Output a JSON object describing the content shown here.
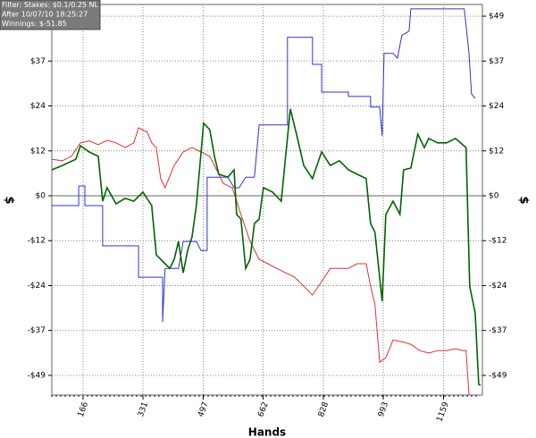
{
  "chart_data": {
    "type": "line",
    "info": [
      "Filter: Stakes: $0.1/0.25 NL",
      "After 10/07/10 18:25:27",
      "Winnings: $-51.85"
    ],
    "xlabel": "Hands",
    "ylabel": "$",
    "xlim": [
      80,
      1266
    ],
    "xticks": [
      166,
      331,
      497,
      662,
      828,
      993,
      1159
    ],
    "ylim": [
      -54.6,
      52.4
    ],
    "yticks": [
      {
        "value": 49.2,
        "label": "$49"
      },
      {
        "value": 36.9,
        "label": "$37"
      },
      {
        "value": 24.6,
        "label": "$24"
      },
      {
        "value": 12.3,
        "label": "$12"
      },
      {
        "value": 0,
        "label": "$0"
      },
      {
        "value": -12.3,
        "label": "-$12"
      },
      {
        "value": -24.6,
        "label": "-$24"
      },
      {
        "value": -36.9,
        "label": "-$37"
      },
      {
        "value": -49.2,
        "label": "-$49"
      }
    ],
    "grid": true,
    "series": [
      {
        "color": "#3333cc",
        "width": 1,
        "x": [
          80,
          154,
          154,
          171,
          171,
          220,
          220,
          319,
          319,
          385,
          385,
          392,
          429,
          442,
          478,
          491,
          508,
          508,
          565,
          582,
          596,
          614,
          638,
          651,
          729,
          729,
          798,
          798,
          823,
          823,
          897,
          897,
          958,
          958,
          983,
          990,
          995,
          1020,
          1032,
          1044,
          1064,
          1069,
          1216,
          1229,
          1236,
          1246
        ],
        "values": [
          -2.7,
          -2.7,
          2.7,
          2.7,
          -2.7,
          -2.7,
          -13.7,
          -13.7,
          -22.3,
          -22.3,
          -34.6,
          -19.9,
          -19.9,
          -12.5,
          -12.5,
          -15.0,
          -15.0,
          5.1,
          5.1,
          2.2,
          2.2,
          5.1,
          5.1,
          19.4,
          19.4,
          43.4,
          43.4,
          36.0,
          36.0,
          28.4,
          28.4,
          27.2,
          27.2,
          24.3,
          24.3,
          16.4,
          39.0,
          39.0,
          37.7,
          43.9,
          45.1,
          51.2,
          51.2,
          39.0,
          27.9,
          26.7
        ]
      },
      {
        "color": "#e03030",
        "width": 1,
        "x": [
          80,
          109,
          134,
          159,
          183,
          208,
          232,
          257,
          282,
          306,
          319,
          343,
          355,
          368,
          380,
          392,
          417,
          442,
          466,
          491,
          515,
          540,
          552,
          577,
          601,
          626,
          651,
          675,
          700,
          724,
          749,
          774,
          798,
          823,
          847,
          872,
          897,
          921,
          946,
          958,
          970,
          983,
          1000,
          1020,
          1044,
          1069,
          1093,
          1118,
          1143,
          1167,
          1192,
          1212,
          1221,
          1229
        ],
        "values": [
          10.0,
          9.6,
          10.8,
          14.5,
          15.0,
          14.0,
          15.2,
          14.5,
          13.2,
          14.5,
          18.6,
          17.4,
          14.5,
          13.2,
          4.7,
          2.2,
          8.3,
          12.0,
          13.2,
          12.0,
          10.8,
          5.9,
          3.4,
          2.2,
          -5.1,
          -12.5,
          -17.4,
          -18.6,
          -19.9,
          -21.1,
          -22.3,
          -24.8,
          -27.2,
          -23.5,
          -19.9,
          -19.9,
          -19.9,
          -18.6,
          -18.6,
          -24.8,
          -29.7,
          -45.6,
          -44.4,
          -39.5,
          -40.0,
          -40.7,
          -42.4,
          -43.1,
          -42.4,
          -42.4,
          -41.9,
          -42.4,
          -42.4,
          -54.5
        ]
      },
      {
        "color": "#006400",
        "width": 1.6,
        "x": [
          80,
          109,
          146,
          159,
          183,
          208,
          220,
          232,
          257,
          282,
          306,
          331,
          355,
          368,
          392,
          405,
          417,
          429,
          442,
          454,
          466,
          478,
          498,
          515,
          528,
          540,
          565,
          582,
          589,
          601,
          614,
          626,
          638,
          651,
          663,
          688,
          712,
          737,
          754,
          774,
          798,
          823,
          847,
          872,
          897,
          921,
          946,
          958,
          970,
          990,
          1000,
          1020,
          1039,
          1049,
          1069,
          1088,
          1106,
          1118,
          1143,
          1167,
          1192,
          1221,
          1231,
          1246,
          1256,
          1261
        ],
        "values": [
          7.1,
          8.3,
          10.0,
          13.7,
          12.0,
          10.8,
          -1.5,
          2.2,
          -2.2,
          -0.7,
          -1.5,
          1.0,
          -2.7,
          -16.2,
          -18.6,
          -19.9,
          -17.4,
          -12.5,
          -21.1,
          -15.0,
          -11.3,
          -2.7,
          19.9,
          18.1,
          10.8,
          5.9,
          5.1,
          7.1,
          -5.1,
          -6.4,
          -19.9,
          -17.4,
          -7.6,
          -6.4,
          2.2,
          1.0,
          -1.5,
          23.8,
          16.9,
          8.3,
          4.7,
          12.0,
          8.3,
          9.6,
          7.1,
          5.9,
          4.7,
          -7.6,
          -10.0,
          -28.9,
          -5.1,
          -1.5,
          -5.1,
          7.1,
          7.6,
          16.9,
          13.2,
          15.7,
          14.5,
          14.5,
          15.7,
          13.2,
          -24.8,
          -32.1,
          -51.7,
          -51.85
        ]
      }
    ]
  }
}
